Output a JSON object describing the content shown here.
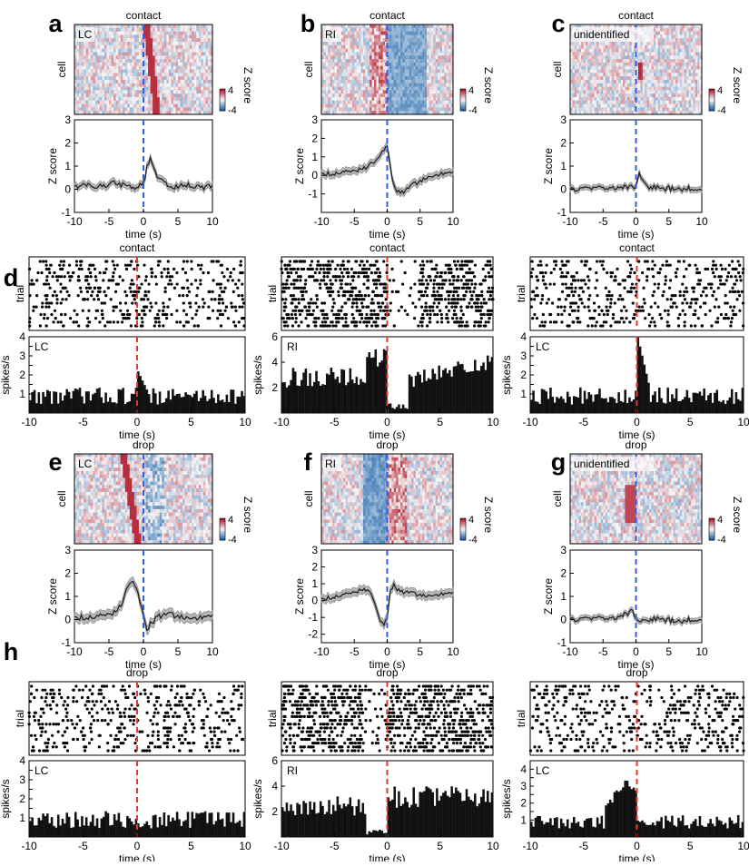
{
  "panel_letters": [
    "a",
    "b",
    "c",
    "d",
    "e",
    "f",
    "g",
    "h"
  ],
  "chart_data": [
    {
      "id": "a",
      "type": "heatmap",
      "title": "contact",
      "inset_label": "LC",
      "ylabel": "cell",
      "colorbar": {
        "label": "Z score",
        "ticks": [
          "4",
          "-4"
        ]
      },
      "xlim": [
        -10,
        10
      ],
      "event_time": 0,
      "colormap": [
        "#2166ac",
        "#f7f7f7",
        "#b2182b"
      ]
    },
    {
      "id": "a_trace",
      "type": "line",
      "xlabel": "time (s)",
      "ylabel": "Z score",
      "xlim": [
        -10,
        10
      ],
      "ylim": [
        -1,
        3
      ],
      "xticks": [
        -10,
        -5,
        0,
        5,
        10
      ],
      "yticks": [
        -1,
        0,
        1,
        2,
        3
      ],
      "x": [
        -10,
        -8,
        -6,
        -4,
        -2,
        -1,
        0,
        0.5,
        1,
        1.5,
        2,
        3,
        4,
        6,
        8,
        10
      ],
      "y": [
        0.1,
        0.2,
        0.1,
        0.3,
        0.1,
        0.1,
        0.2,
        0.9,
        1.3,
        1.0,
        0.5,
        0.3,
        0.1,
        0.2,
        0.1,
        0.1
      ],
      "sem": 0.15
    },
    {
      "id": "b",
      "type": "heatmap",
      "title": "contact",
      "inset_label": "RI",
      "ylabel": "cell",
      "colorbar": {
        "label": "Z score",
        "ticks": [
          "4",
          "-4"
        ]
      },
      "xlim": [
        -10,
        10
      ],
      "event_time": 0
    },
    {
      "id": "b_trace",
      "type": "line",
      "xlabel": "time (s)",
      "ylabel": "Z score",
      "xlim": [
        -10,
        10
      ],
      "ylim": [
        -2,
        3
      ],
      "xticks": [
        -10,
        -5,
        0,
        5,
        10
      ],
      "yticks": [
        -1,
        0,
        1,
        2,
        3
      ],
      "x": [
        -10,
        -8,
        -6,
        -4,
        -2,
        -1,
        0,
        0.5,
        1,
        2,
        3,
        4,
        6,
        8,
        10
      ],
      "y": [
        0.1,
        0.1,
        0.2,
        0.3,
        0.7,
        1.2,
        1.6,
        0.4,
        -0.6,
        -1.0,
        -0.8,
        -0.5,
        -0.1,
        0.1,
        0.1
      ],
      "sem": 0.2
    },
    {
      "id": "c",
      "type": "heatmap",
      "title": "contact",
      "inset_label": "unidentified",
      "ylabel": "cell",
      "colorbar": {
        "label": "Z score",
        "ticks": [
          "4",
          "-4"
        ]
      },
      "xlim": [
        -10,
        10
      ],
      "event_time": 0
    },
    {
      "id": "c_trace",
      "type": "line",
      "xlabel": "time (s)",
      "ylabel": "Z score",
      "xlim": [
        -10,
        10
      ],
      "ylim": [
        -1,
        3
      ],
      "xticks": [
        -10,
        -5,
        0,
        5,
        10
      ],
      "yticks": [
        -1,
        0,
        1,
        2,
        3
      ],
      "x": [
        -10,
        -6,
        -2,
        -0.5,
        0,
        0.5,
        1,
        2,
        4,
        6,
        10
      ],
      "y": [
        0,
        0.05,
        0.1,
        0.1,
        0.2,
        0.7,
        0.4,
        0.1,
        0,
        0.05,
        0
      ],
      "sem": 0.12
    },
    {
      "id": "d_left",
      "type": "bar",
      "title": "contact",
      "inset_label": "LC",
      "raster_ylabel": "trial",
      "xlabel": "time (s)",
      "ylabel": "spikes/s",
      "xlim": [
        -10,
        10
      ],
      "ylim": [
        0,
        4
      ],
      "xticks": [
        -10,
        -5,
        0,
        5,
        10
      ],
      "yticks": [
        1,
        1.5,
        2,
        2.5,
        3,
        3.5,
        4
      ],
      "ytick_labels": [
        "1",
        "",
        "2",
        "",
        "3",
        "",
        "4"
      ],
      "profile": "flat_peak_after",
      "peak": 1.9
    },
    {
      "id": "d_mid",
      "type": "bar",
      "title": "contact",
      "inset_label": "RI",
      "raster_ylabel": "trial",
      "xlabel": "time (s)",
      "ylabel": "spikes/s",
      "xlim": [
        -10,
        10
      ],
      "ylim": [
        0,
        6
      ],
      "xticks": [
        -10,
        -5,
        0,
        5,
        10
      ],
      "yticks": [
        2,
        4,
        6
      ],
      "ytick_labels": [
        "2",
        "4",
        "6"
      ],
      "profile": "rise_then_drop"
    },
    {
      "id": "d_right",
      "type": "bar",
      "title": "contact",
      "inset_label": "LC",
      "raster_ylabel": "trial",
      "xlabel": "time (s)",
      "ylabel": "spikes/s",
      "xlim": [
        -10,
        10
      ],
      "ylim": [
        0,
        4
      ],
      "xticks": [
        -10,
        -5,
        0,
        5,
        10
      ],
      "yticks": [
        1,
        1.5,
        2,
        2.5,
        3,
        3.5,
        4
      ],
      "ytick_labels": [
        "1",
        "",
        "2",
        "",
        "3",
        "",
        "4"
      ],
      "profile": "flat_peak_after",
      "peak": 3.8
    },
    {
      "id": "e",
      "type": "heatmap",
      "title": "drop",
      "inset_label": "LC",
      "ylabel": "cell",
      "colorbar": {
        "label": "Z score",
        "ticks": [
          "4",
          "-4"
        ]
      },
      "xlim": [
        -10,
        10
      ],
      "event_time": 0
    },
    {
      "id": "e_trace",
      "type": "line",
      "xlabel": "time (s)",
      "ylabel": "Z score",
      "xlim": [
        -10,
        10
      ],
      "ylim": [
        -1,
        3
      ],
      "xticks": [
        -10,
        -5,
        0,
        5,
        10
      ],
      "yticks": [
        -1,
        0,
        1,
        2,
        3
      ],
      "x": [
        -10,
        -7,
        -4,
        -3,
        -2,
        -1.5,
        -1,
        0,
        0.5,
        1,
        2,
        4,
        6,
        8,
        10
      ],
      "y": [
        0.1,
        0.1,
        0.3,
        0.8,
        1.6,
        1.7,
        1.4,
        0.2,
        -0.5,
        -0.2,
        0.1,
        0.2,
        0.1,
        0.1,
        0.1
      ],
      "sem": 0.2
    },
    {
      "id": "f",
      "type": "heatmap",
      "title": "drop",
      "inset_label": "RI",
      "ylabel": "cell",
      "colorbar": {
        "label": "Z score",
        "ticks": [
          "4",
          "-4"
        ]
      },
      "xlim": [
        -10,
        10
      ],
      "event_time": 0
    },
    {
      "id": "f_trace",
      "type": "line",
      "xlabel": "time (s)",
      "ylabel": "Z score",
      "xlim": [
        -10,
        10
      ],
      "ylim": [
        -2.5,
        3
      ],
      "xticks": [
        -10,
        -5,
        0,
        5,
        10
      ],
      "yticks": [
        -2,
        -1,
        0,
        1,
        2,
        3
      ],
      "x": [
        -10,
        -7,
        -5,
        -3,
        -2,
        -1,
        -0.5,
        0,
        0.5,
        1,
        2,
        4,
        6,
        8,
        10
      ],
      "y": [
        0.1,
        0.3,
        0.5,
        0.7,
        0,
        -1.2,
        -1.4,
        -1.0,
        0.6,
        0.9,
        0.5,
        0.4,
        0.3,
        0.4,
        0.4
      ],
      "sem": 0.25
    },
    {
      "id": "g",
      "type": "heatmap",
      "title": "drop",
      "inset_label": "unidentified",
      "ylabel": "cell",
      "colorbar": {
        "label": "Z score",
        "ticks": [
          "4",
          "-4"
        ]
      },
      "xlim": [
        -10,
        10
      ],
      "event_time": 0
    },
    {
      "id": "g_trace",
      "type": "line",
      "xlabel": "time (s)",
      "ylabel": "Z score",
      "xlim": [
        -10,
        10
      ],
      "ylim": [
        -1,
        3
      ],
      "xticks": [
        -10,
        -5,
        0,
        5,
        10
      ],
      "yticks": [
        -1,
        0,
        1,
        2,
        3
      ],
      "x": [
        -10,
        -6,
        -3,
        -1,
        -0.5,
        0,
        0.5,
        1,
        3,
        6,
        10
      ],
      "y": [
        0,
        0.05,
        0.1,
        0.3,
        0.4,
        0.1,
        -0.1,
        0,
        0,
        -0.05,
        0
      ],
      "sem": 0.12
    },
    {
      "id": "h_left",
      "type": "bar",
      "title": "drop",
      "inset_label": "LC",
      "raster_ylabel": "trial",
      "xlabel": "time (s)",
      "ylabel": "spikes/s",
      "xlim": [
        -10,
        10
      ],
      "ylim": [
        0,
        4
      ],
      "xticks": [
        -10,
        -5,
        0,
        5,
        10
      ],
      "yticks": [
        1,
        1.5,
        2,
        2.5,
        3,
        3.5,
        4
      ],
      "ytick_labels": [
        "1",
        "",
        "2",
        "",
        "3",
        "",
        "4"
      ],
      "profile": "flat"
    },
    {
      "id": "h_mid",
      "type": "bar",
      "title": "drop",
      "inset_label": "RI",
      "raster_ylabel": "trial",
      "xlabel": "time (s)",
      "ylabel": "spikes/s",
      "xlim": [
        -10,
        10
      ],
      "ylim": [
        0,
        6
      ],
      "xticks": [
        -10,
        -5,
        0,
        5,
        10
      ],
      "yticks": [
        2,
        4,
        6
      ],
      "ytick_labels": [
        "2",
        "4",
        "6"
      ],
      "profile": "dip_before_drop"
    },
    {
      "id": "h_right",
      "type": "bar",
      "title": "drop",
      "inset_label": "LC",
      "raster_ylabel": "trial",
      "xlabel": "time (s)",
      "ylabel": "spikes/s",
      "xlim": [
        -10,
        10
      ],
      "ylim": [
        0,
        4.5
      ],
      "xticks": [
        -10,
        -5,
        0,
        5,
        10
      ],
      "yticks": [
        1,
        1.5,
        2,
        2.5,
        3,
        3.5,
        4
      ],
      "ytick_labels": [
        "1",
        "",
        "2",
        "",
        "3",
        "",
        "4"
      ],
      "profile": "peak_before",
      "peak": 3.3
    }
  ]
}
